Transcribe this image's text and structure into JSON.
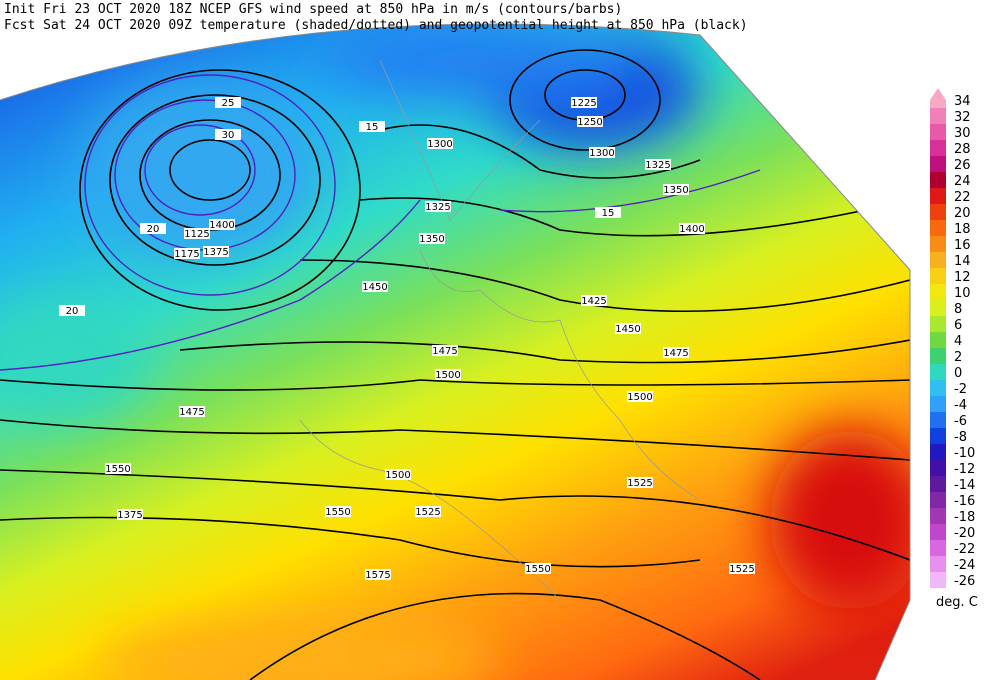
{
  "header": {
    "lines": [
      "Init  Fri 23 OCT 2020 18Z   NCEP GFS wind speed at 850 hPa in m/s (contours/barbs)",
      "Fcst Sat 24 OCT 2020 09Z   temperature (shaded/dotted) and geopotential height at 850 hPa (black)"
    ]
  },
  "colorbar": {
    "labels": [
      34,
      32,
      30,
      28,
      26,
      24,
      22,
      20,
      18,
      16,
      14,
      12,
      10,
      8,
      6,
      4,
      2,
      0,
      -2,
      -4,
      -6,
      -8,
      -10,
      -12,
      -14,
      -16,
      -18,
      -20,
      -22,
      -24,
      -26
    ],
    "colors": [
      "#f7a8c4",
      "#f080b8",
      "#e85aa8",
      "#d8309a",
      "#c01080",
      "#b00030",
      "#e01818",
      "#f04010",
      "#f86810",
      "#f88c18",
      "#f8b020",
      "#f8d018",
      "#f0e810",
      "#d8f020",
      "#a8e830",
      "#70d840",
      "#40d070",
      "#30d8c0",
      "#30c0f0",
      "#30a0f8",
      "#2070f0",
      "#1040e0",
      "#2018c0",
      "#4010a8",
      "#6018a0",
      "#8028a8",
      "#a038b0",
      "#c048c8",
      "#d868e0",
      "#e890f0",
      "#f0b8f8"
    ],
    "units": "deg. C"
  },
  "map": {
    "labels": [
      "1300",
      "1325",
      "1325",
      "1350",
      "1350",
      "1375",
      "1400",
      "1400",
      "1425",
      "1450",
      "1450",
      "1475",
      "1475",
      "1475",
      "1500",
      "1500",
      "1500",
      "1525",
      "1525",
      "1525",
      "1550",
      "1550",
      "1550",
      "1575",
      "1375",
      "1225",
      "1250",
      "1125",
      "1175",
      "1300",
      "15",
      "15",
      "20",
      "25",
      "30",
      "20"
    ]
  }
}
